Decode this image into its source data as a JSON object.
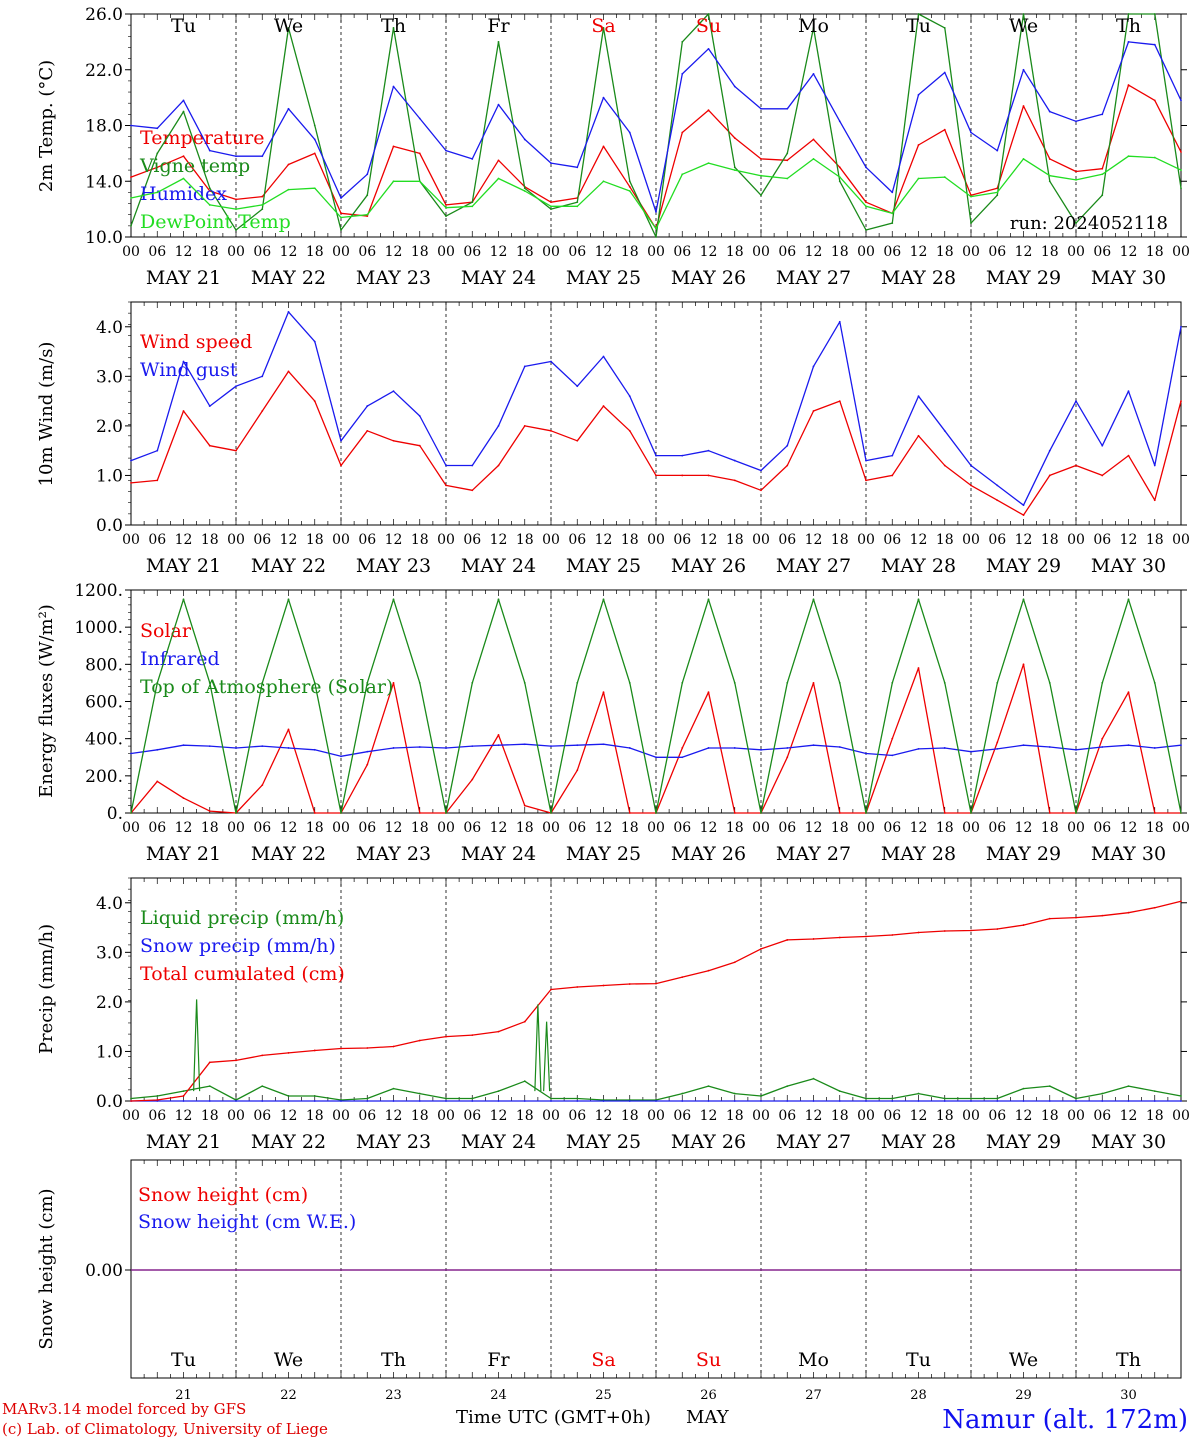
{
  "colors": {
    "red": "#ee0000",
    "blue": "#1a1aee",
    "green": "#1a8a1a",
    "lightgreen": "#22dd22",
    "purple": "#7a3ab0",
    "black": "#000000"
  },
  "days": {
    "weekdays": [
      "Tu",
      "We",
      "Th",
      "Fr",
      "Sa",
      "Su",
      "Mo",
      "Tu",
      "We",
      "Th"
    ],
    "weekday_colors": [
      "#000000",
      "#000000",
      "#000000",
      "#000000",
      "#ee0000",
      "#ee0000",
      "#000000",
      "#000000",
      "#000000",
      "#000000"
    ],
    "dates": [
      "MAY 21",
      "MAY 22",
      "MAY 23",
      "MAY 24",
      "MAY 25",
      "MAY 26",
      "MAY 27",
      "MAY 28",
      "MAY 29",
      "MAY 30"
    ],
    "day_numbers": [
      "21",
      "22",
      "23",
      "24",
      "25",
      "26",
      "27",
      "28",
      "29",
      "30"
    ],
    "hour_labels": [
      "00",
      "06",
      "12",
      "18"
    ],
    "final_hour_label": "00"
  },
  "chart_data": [
    {
      "type": "line",
      "ylabel": "2m Temp. (°C)",
      "ylim": [
        10,
        26
      ],
      "yticks": [
        "10.0",
        "14.0",
        "18.0",
        "22.0",
        "26.0"
      ],
      "annotation": "run: 2024052118",
      "x_unit": "hours since 2024-05-21 00 UTC, 6-hourly",
      "series": [
        {
          "name": "Temperature",
          "color": "#ee0000",
          "values": [
            14.3,
            15.0,
            15.8,
            13.3,
            12.7,
            12.9,
            15.2,
            16.0,
            11.7,
            11.5,
            16.5,
            16.0,
            12.3,
            12.5,
            15.5,
            13.6,
            12.5,
            12.8,
            16.5,
            13.6,
            10.6,
            17.5,
            19.1,
            17.1,
            15.6,
            15.5,
            17.0,
            15.0,
            12.5,
            11.7,
            16.6,
            17.7,
            13.0,
            13.5,
            19.4,
            15.6,
            14.7,
            14.9,
            20.9,
            19.8,
            16.1
          ]
        },
        {
          "name": "Vigne temp",
          "color": "#1a8a1a",
          "values": [
            10.8,
            16.0,
            19.0,
            13.5,
            10.5,
            12.0,
            25.0,
            18.0,
            10.5,
            13.0,
            25.0,
            14.0,
            11.5,
            12.5,
            24.0,
            13.5,
            12.0,
            12.5,
            25.0,
            14.0,
            9.5,
            24.0,
            26.0,
            15.0,
            13.0,
            16.0,
            25.0,
            14.0,
            10.5,
            11.0,
            26.0,
            25.0,
            11.0,
            13.0,
            26.0,
            14.0,
            11.0,
            13.0,
            26.0,
            26.0,
            13.5
          ]
        },
        {
          "name": "Humidex",
          "color": "#1a1aee",
          "values": [
            18.0,
            17.8,
            19.8,
            16.2,
            15.8,
            15.8,
            19.2,
            17.0,
            12.8,
            14.5,
            20.8,
            18.5,
            16.2,
            15.6,
            19.5,
            17.0,
            15.3,
            15.0,
            20.0,
            17.5,
            11.8,
            21.7,
            23.5,
            20.8,
            19.2,
            19.2,
            21.7,
            18.3,
            15.0,
            13.2,
            20.2,
            21.8,
            17.5,
            16.2,
            22.0,
            19.0,
            18.3,
            18.8,
            24.0,
            23.8,
            19.8
          ]
        },
        {
          "name": "DewPoint Temp",
          "color": "#22dd22",
          "values": [
            12.8,
            13.2,
            14.2,
            12.3,
            12.0,
            12.3,
            13.4,
            13.5,
            11.4,
            11.6,
            14.0,
            14.0,
            12.1,
            12.2,
            14.2,
            13.3,
            12.2,
            12.2,
            14.0,
            13.3,
            10.6,
            14.5,
            15.3,
            14.8,
            14.4,
            14.2,
            15.6,
            14.3,
            12.2,
            11.7,
            14.2,
            14.3,
            12.9,
            13.2,
            15.6,
            14.4,
            14.1,
            14.5,
            15.8,
            15.7,
            14.8
          ]
        }
      ]
    },
    {
      "type": "line",
      "ylabel": "10m Wind (m/s)",
      "ylim": [
        0,
        4.5
      ],
      "yticks": [
        "0.0",
        "1.0",
        "2.0",
        "3.0",
        "4.0"
      ],
      "x_unit": "hours since 2024-05-21 00 UTC, 6-hourly",
      "series": [
        {
          "name": "Wind speed",
          "color": "#ee0000",
          "values": [
            0.85,
            0.9,
            2.3,
            1.6,
            1.5,
            2.3,
            3.1,
            2.5,
            1.2,
            1.9,
            1.7,
            1.6,
            0.8,
            0.7,
            1.2,
            2.0,
            1.9,
            1.7,
            2.4,
            1.9,
            1.0,
            1.0,
            1.0,
            0.9,
            0.7,
            1.2,
            2.3,
            2.5,
            0.9,
            1.0,
            1.8,
            1.2,
            0.8,
            0.5,
            0.2,
            1.0,
            1.2,
            1.0,
            1.4,
            0.5,
            2.5
          ]
        },
        {
          "name": "Wind gust",
          "color": "#1a1aee",
          "values": [
            1.3,
            1.5,
            3.3,
            2.4,
            2.8,
            3.0,
            4.3,
            3.7,
            1.7,
            2.4,
            2.7,
            2.2,
            1.2,
            1.2,
            2.0,
            3.2,
            3.3,
            2.8,
            3.4,
            2.6,
            1.4,
            1.4,
            1.5,
            1.3,
            1.1,
            1.6,
            3.2,
            4.1,
            1.3,
            1.4,
            2.6,
            1.9,
            1.2,
            0.8,
            0.4,
            1.5,
            2.5,
            1.6,
            2.7,
            1.2,
            4.0
          ]
        }
      ]
    },
    {
      "type": "line",
      "ylabel": "Energy fluxes (W/m²)",
      "ylim": [
        0,
        1200
      ],
      "yticks": [
        "0.",
        "200.",
        "400.",
        "600.",
        "800.",
        "1000.",
        "1200."
      ],
      "x_unit": "hours since 2024-05-21 00 UTC, 6-hourly",
      "series": [
        {
          "name": "Solar",
          "color": "#ee0000",
          "values": [
            0,
            170,
            80,
            10,
            0,
            150,
            450,
            0,
            0,
            260,
            700,
            0,
            0,
            180,
            420,
            40,
            0,
            230,
            650,
            0,
            0,
            350,
            650,
            0,
            0,
            300,
            700,
            0,
            0,
            400,
            780,
            0,
            0,
            380,
            800,
            0,
            0,
            400,
            650,
            0,
            0
          ]
        },
        {
          "name": "Infrared",
          "color": "#1a1aee",
          "values": [
            320,
            340,
            365,
            360,
            350,
            360,
            350,
            340,
            305,
            330,
            350,
            355,
            350,
            360,
            365,
            370,
            360,
            365,
            370,
            350,
            300,
            300,
            350,
            350,
            340,
            350,
            365,
            355,
            320,
            310,
            345,
            350,
            330,
            345,
            365,
            355,
            340,
            355,
            365,
            350,
            365
          ]
        },
        {
          "name": "Top of Atmosphere (Solar)",
          "color": "#1a8a1a",
          "values": [
            0,
            700,
            1150,
            700,
            0,
            700,
            1150,
            700,
            0,
            700,
            1150,
            700,
            0,
            700,
            1150,
            700,
            0,
            700,
            1150,
            700,
            0,
            700,
            1150,
            700,
            0,
            700,
            1150,
            700,
            0,
            700,
            1150,
            700,
            0,
            700,
            1150,
            700,
            0,
            700,
            1150,
            700,
            0
          ]
        }
      ]
    },
    {
      "type": "line",
      "ylabel": "Precip (mm/h)",
      "ylim": [
        0,
        4.5
      ],
      "yticks": [
        "0.0",
        "1.0",
        "2.0",
        "3.0",
        "4.0"
      ],
      "x_unit": "hours since 2024-05-21 00 UTC, 6-hourly",
      "series": [
        {
          "name": "Liquid precip (mm/h)",
          "color": "#1a8a1a",
          "values": [
            0.05,
            0.1,
            0.2,
            0.3,
            0.02,
            0.3,
            0.1,
            0.1,
            0.02,
            0.05,
            0.25,
            0.15,
            0.05,
            0.05,
            0.2,
            0.4,
            0.05,
            0.05,
            0.02,
            0.02,
            0.02,
            0.15,
            0.3,
            0.15,
            0.1,
            0.3,
            0.45,
            0.2,
            0.05,
            0.05,
            0.15,
            0.05,
            0.05,
            0.05,
            0.25,
            0.3,
            0.05,
            0.15,
            0.3,
            0.2,
            0.1
          ]
        },
        {
          "name": "Snow precip (mm/h)",
          "color": "#1a1aee",
          "values": [
            0,
            0,
            0,
            0,
            0,
            0,
            0,
            0,
            0,
            0,
            0,
            0,
            0,
            0,
            0,
            0,
            0,
            0,
            0,
            0,
            0,
            0,
            0,
            0,
            0,
            0,
            0,
            0,
            0,
            0,
            0,
            0,
            0,
            0,
            0,
            0,
            0,
            0,
            0,
            0,
            0
          ]
        },
        {
          "name": "Total cumulated (cm)",
          "color": "#ee0000",
          "values": [
            0.0,
            0.02,
            0.1,
            0.78,
            0.82,
            0.92,
            0.97,
            1.02,
            1.06,
            1.07,
            1.1,
            1.22,
            1.3,
            1.33,
            1.4,
            1.6,
            2.25,
            2.3,
            2.33,
            2.36,
            2.37,
            2.5,
            2.63,
            2.8,
            3.07,
            3.25,
            3.27,
            3.3,
            3.32,
            3.35,
            3.4,
            3.43,
            3.44,
            3.47,
            3.55,
            3.68,
            3.7,
            3.74,
            3.8,
            3.9,
            4.03
          ]
        }
      ],
      "spikes": [
        {
          "x_hours": 15,
          "value": 2.05
        },
        {
          "x_hours": 93,
          "value": 1.95
        },
        {
          "x_hours": 95,
          "value": 1.6
        }
      ]
    },
    {
      "type": "line",
      "ylabel": "Snow height (cm)",
      "ytick": "0.00",
      "series": [
        {
          "name": "Snow height (cm)",
          "color": "#ee0000",
          "value": 0.0
        },
        {
          "name": "Snow height (cm W.E.)",
          "color": "#1a1aee",
          "value": 0.0
        }
      ]
    }
  ],
  "footer": {
    "credit_line1": "MARv3.14 model forced by GFS",
    "credit_line2": "(c) Lab. of Climatology, University of Liege",
    "time_axis_label": "Time UTC (GMT+0h)",
    "month_label": "MAY",
    "station": "Namur (alt. 172m)"
  }
}
